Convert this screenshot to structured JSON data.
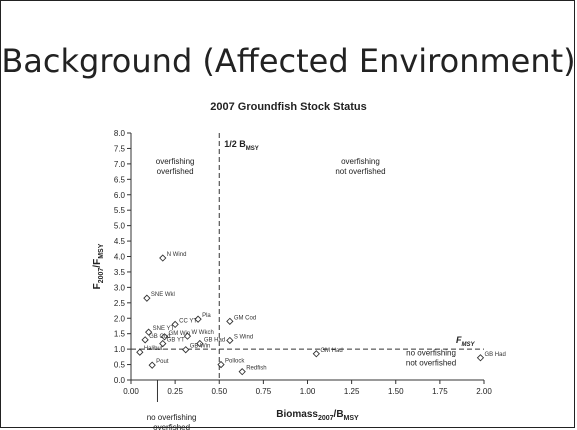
{
  "slide": {
    "title": "Background (Affected Environment)"
  },
  "chart_data": {
    "type": "scatter",
    "title": "2007 Groundfish Stock Status",
    "xlabel": {
      "main": "Biomass",
      "sub1": "2007",
      "mid": "/B",
      "sub2": "MSY"
    },
    "ylabel": {
      "main": "F",
      "sub1": "2007",
      "mid": "/F",
      "sub2": "MSY"
    },
    "xlim": [
      0,
      2
    ],
    "ylim": [
      0,
      8
    ],
    "xticks": [
      "0.00",
      "0.25",
      "0.50",
      "0.75",
      "1.00",
      "1.25",
      "1.50",
      "1.75",
      "2.00"
    ],
    "yticks": [
      "0.0",
      "0.5",
      "1.0",
      "1.5",
      "2.0",
      "2.5",
      "3.0",
      "3.5",
      "4.0",
      "4.5",
      "5.0",
      "5.5",
      "6.0",
      "6.5",
      "7.0",
      "7.5",
      "8.0"
    ],
    "grid": false,
    "reference_lines": {
      "vertical": {
        "x": 0.5,
        "label_main": "1/2 B",
        "label_sub": "MSY"
      },
      "horizontal": {
        "y": 1.0,
        "label_main": "F",
        "label_sub": "MSY"
      }
    },
    "quadrant_labels": [
      {
        "line1": "overfishing",
        "line2": "overfished",
        "x": 0.25,
        "y": 7.0
      },
      {
        "line1": "overfishing",
        "line2": "not overfished",
        "x": 1.3,
        "y": 7.0
      },
      {
        "line1": "no overfishing",
        "line2": "not overfished",
        "x": 1.7,
        "y": 0.8
      },
      {
        "line1": "no overfishing",
        "line2": "overfished",
        "x": 0.23,
        "y": -1.3
      }
    ],
    "points": [
      {
        "label": "N Wind",
        "x": 0.18,
        "y": 3.95
      },
      {
        "label": "SNE Wkl",
        "x": 0.09,
        "y": 2.65
      },
      {
        "label": "GM Cod",
        "x": 0.56,
        "y": 1.9
      },
      {
        "label": "Pla",
        "x": 0.38,
        "y": 1.97
      },
      {
        "label": "CC YT",
        "x": 0.25,
        "y": 1.8
      },
      {
        "label": "SNE YT",
        "x": 0.1,
        "y": 1.55
      },
      {
        "label": "S Wind",
        "x": 0.56,
        "y": 1.28
      },
      {
        "label": "GM Win",
        "x": 0.19,
        "y": 1.4
      },
      {
        "label": "W Wkch",
        "x": 0.32,
        "y": 1.42
      },
      {
        "label": "GB Cod",
        "x": 0.08,
        "y": 1.3
      },
      {
        "label": "GB YT",
        "x": 0.18,
        "y": 1.18
      },
      {
        "label": "GB Had",
        "x": 0.39,
        "y": 1.18
      },
      {
        "label": "GB Win",
        "x": 0.31,
        "y": 0.98
      },
      {
        "label": "Halibut",
        "x": 0.05,
        "y": 0.9
      },
      {
        "label": "Pout",
        "x": 0.12,
        "y": 0.48
      },
      {
        "label": "Pollock",
        "x": 0.51,
        "y": 0.5
      },
      {
        "label": "Redfish",
        "x": 0.63,
        "y": 0.27
      },
      {
        "label": "GM Had",
        "x": 1.05,
        "y": 0.85
      },
      {
        "label": "GB Had",
        "x": 1.98,
        "y": 0.72
      }
    ],
    "no_overfishing_overfished_pointer_x": 0.15
  }
}
